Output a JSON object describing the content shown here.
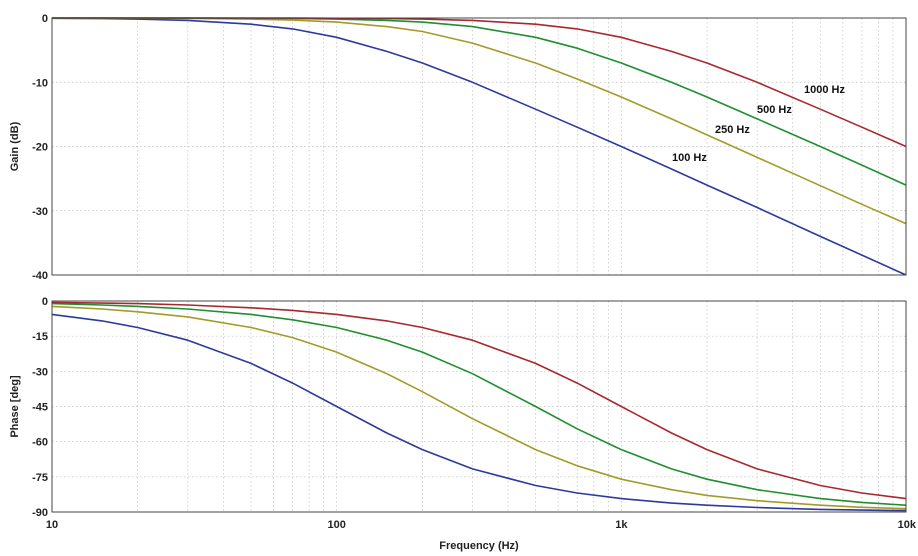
{
  "chart_data": [
    {
      "type": "line",
      "title": "",
      "xlabel": "",
      "ylabel": "Gain (dB)",
      "xscale": "log",
      "xlim": [
        10,
        10000
      ],
      "ylim": [
        -40,
        0
      ],
      "yticks": [
        "0",
        "-10",
        "-20",
        "-30",
        "-40"
      ],
      "grid": true,
      "x": [
        10,
        15,
        20,
        30,
        50,
        70,
        100,
        150,
        200,
        300,
        500,
        700,
        1000,
        1500,
        2000,
        3000,
        5000,
        7000,
        10000
      ],
      "series": [
        {
          "name": "100 Hz",
          "color": "#2c3a9e",
          "values": [
            -0.04,
            -0.1,
            -0.17,
            -0.37,
            -0.97,
            -1.7,
            -3.0,
            -5.2,
            -7.0,
            -10.0,
            -14.2,
            -17.0,
            -20.0,
            -23.5,
            -26.0,
            -29.5,
            -34.0,
            -36.9,
            -40.0
          ]
        },
        {
          "name": "250 Hz",
          "color": "#a59a28",
          "values": [
            -0.01,
            -0.02,
            -0.03,
            -0.06,
            -0.17,
            -0.32,
            -0.64,
            -1.34,
            -2.1,
            -3.9,
            -7.0,
            -9.5,
            -12.3,
            -15.7,
            -18.2,
            -21.7,
            -26.1,
            -29.0,
            -32.0
          ]
        },
        {
          "name": "500 Hz",
          "color": "#1f8f2f",
          "values": [
            0,
            0,
            -0.01,
            -0.02,
            -0.04,
            -0.08,
            -0.17,
            -0.38,
            -0.64,
            -1.34,
            -3.0,
            -4.7,
            -7.0,
            -10.0,
            -12.3,
            -15.7,
            -20.0,
            -22.9,
            -26.0
          ]
        },
        {
          "name": "1000 Hz",
          "color": "#a8282e",
          "values": [
            0,
            0,
            0,
            0,
            -0.01,
            -0.02,
            -0.04,
            -0.1,
            -0.17,
            -0.38,
            -0.97,
            -1.7,
            -3.0,
            -5.2,
            -7.0,
            -10.0,
            -14.2,
            -17.0,
            -20.0
          ]
        }
      ]
    },
    {
      "type": "line",
      "title": "",
      "xlabel": "Frequency (Hz)",
      "ylabel": "Phase [deg]",
      "xscale": "log",
      "xlim": [
        10,
        10000
      ],
      "ylim": [
        -90,
        0
      ],
      "xticks": [
        "10",
        "100",
        "1k",
        "10k"
      ],
      "yticks": [
        "0",
        "-15",
        "-30",
        "-45",
        "-60",
        "-75",
        "-90"
      ],
      "grid": true,
      "x": [
        10,
        15,
        20,
        30,
        50,
        70,
        100,
        150,
        200,
        300,
        500,
        700,
        1000,
        1500,
        2000,
        3000,
        5000,
        7000,
        10000
      ],
      "series": [
        {
          "name": "100 Hz",
          "color": "#2c3a9e",
          "values": [
            -5.7,
            -8.5,
            -11.3,
            -16.7,
            -26.6,
            -35.0,
            -45.0,
            -56.3,
            -63.4,
            -71.6,
            -78.7,
            -81.9,
            -84.3,
            -86.2,
            -87.1,
            -88.1,
            -88.9,
            -89.2,
            -89.4
          ]
        },
        {
          "name": "250 Hz",
          "color": "#a59a28",
          "values": [
            -2.3,
            -3.4,
            -4.6,
            -6.8,
            -11.3,
            -15.6,
            -21.8,
            -31.0,
            -38.7,
            -50.2,
            -63.4,
            -70.3,
            -76.0,
            -80.5,
            -82.9,
            -85.2,
            -87.1,
            -88.0,
            -88.6
          ]
        },
        {
          "name": "500 Hz",
          "color": "#1f8f2f",
          "values": [
            -1.1,
            -1.7,
            -2.3,
            -3.4,
            -5.7,
            -8.0,
            -11.3,
            -16.7,
            -21.8,
            -31.0,
            -45.0,
            -54.5,
            -63.4,
            -71.6,
            -76.0,
            -80.5,
            -84.3,
            -85.9,
            -87.1
          ]
        },
        {
          "name": "1000 Hz",
          "color": "#a8282e",
          "values": [
            -0.6,
            -0.9,
            -1.1,
            -1.7,
            -2.9,
            -4.0,
            -5.7,
            -8.5,
            -11.3,
            -16.7,
            -26.6,
            -35.0,
            -45.0,
            -56.3,
            -63.4,
            -71.6,
            -78.7,
            -81.9,
            -84.3
          ]
        }
      ]
    }
  ]
}
